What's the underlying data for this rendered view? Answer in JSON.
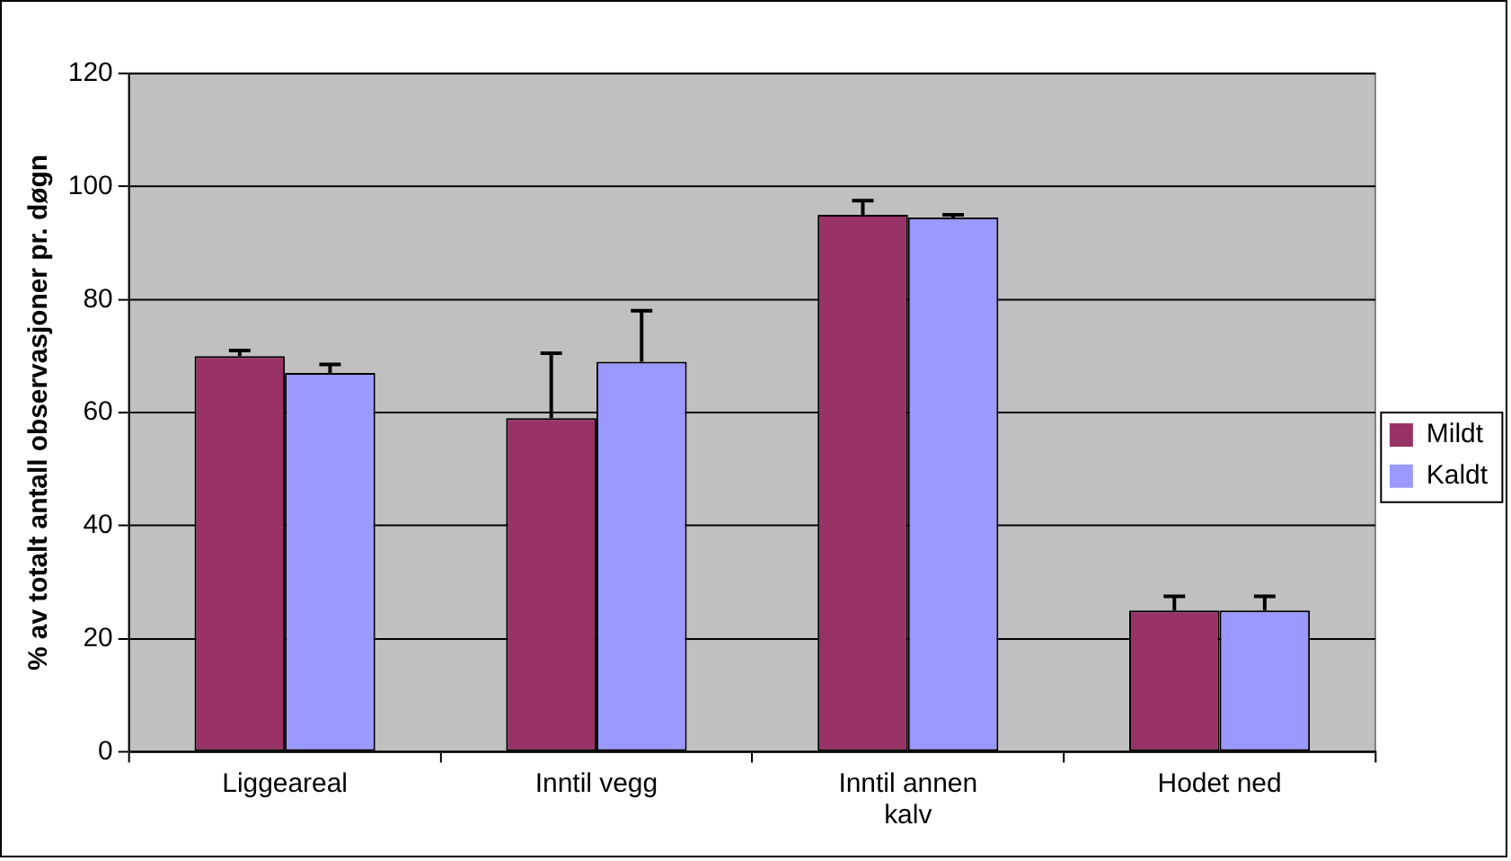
{
  "chart_data": {
    "type": "bar",
    "ylabel": "% av totalt antall observasjoner pr. døgn",
    "categories": [
      "Liggeareal",
      "Inntil vegg",
      "Inntil annen kalv",
      "Hodet ned"
    ],
    "series": [
      {
        "name": "Mildt",
        "color": "#993366",
        "values": [
          70,
          59,
          95,
          25
        ],
        "errors": [
          [
            70,
            71
          ],
          [
            59,
            70.5
          ],
          [
            95,
            97.5
          ],
          [
            25,
            27.5
          ]
        ]
      },
      {
        "name": "Kaldt",
        "color": "#9999ff",
        "values": [
          67,
          69,
          94.5,
          25
        ],
        "errors": [
          [
            67,
            68.5
          ],
          [
            69,
            78
          ],
          [
            94.5,
            95
          ],
          [
            25,
            27.5
          ]
        ]
      }
    ],
    "ylim": [
      0,
      120
    ],
    "yticks": [
      0,
      20,
      40,
      60,
      80,
      100,
      120
    ],
    "grid": "y",
    "legend": "right"
  }
}
